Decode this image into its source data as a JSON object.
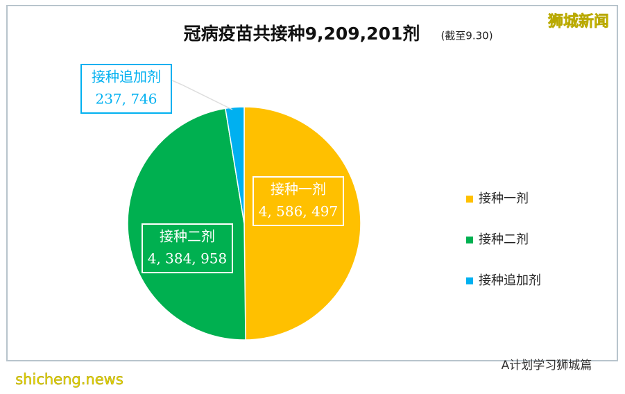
{
  "chart_data": {
    "type": "pie",
    "title": "冠病疫苗共接种9,209,201剂",
    "subtitle": "(截至9.30)",
    "categories": [
      "接种一剂",
      "接种二剂",
      "接种追加剂"
    ],
    "values": [
      4586497,
      4384958,
      237746
    ],
    "value_labels": [
      "4, 586, 497",
      "4, 384, 958",
      "237, 746"
    ],
    "colors": [
      "#FFC000",
      "#00B050",
      "#00B0F0"
    ],
    "legend": "right"
  },
  "watermarks": {
    "top_right": "狮城新闻",
    "bottom_left": "shicheng.news",
    "bottom_right": "A计划学习狮城篇"
  }
}
